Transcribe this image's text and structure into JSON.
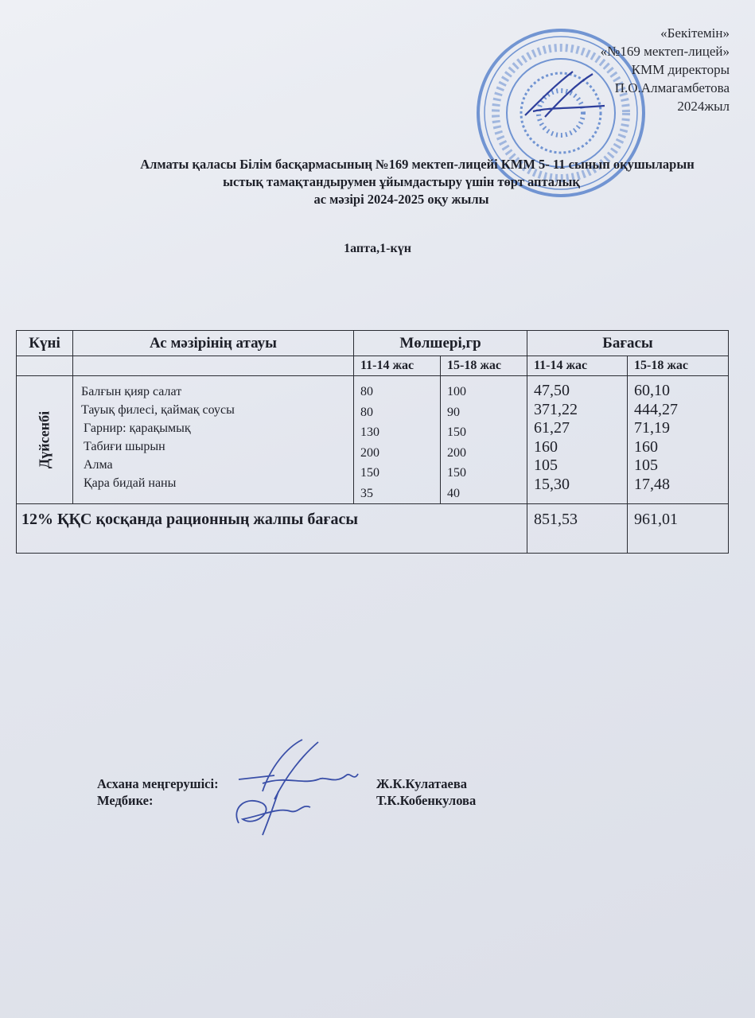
{
  "approval": {
    "lines": [
      "«Бекітемін»",
      "«№169 мектеп-лицей»",
      "КММ директоры",
      "П.О.Алмагамбетова",
      "2024жыл"
    ],
    "stamp_text": "АЛМАТЫ ҚАЛАСЫ ... №169 МЕКТЕП-ЛИЦЕЙІ КОММУНАЛДЫҚ МЕМЛЕКЕТТІК МЕКЕМЕСІ БСН 0705400...",
    "stamp_color": "#3f6fc4"
  },
  "title": {
    "line1": "Алматы қаласы  Білім басқармасының №169 мектеп-лицейі КММ 5- 11 сынып  оқушыларын",
    "line2": "ыстық тамақтандырумен ұйымдастыру үшін  төрт апталық",
    "line3": "ас мәзірі 2024-2025  оқу жылы",
    "week_day": "1апта,1-күн"
  },
  "table": {
    "headers": {
      "day": "Күні",
      "name": "Ас мәзірінің атауы",
      "amount": "Мөлшері,гр",
      "price": "Бағасы",
      "age1": "11-14 жас",
      "age2": "15-18 жас"
    },
    "day": "Дүйсенбі",
    "items": [
      "Балғын қияр салат",
      "Тауық филесі, қаймақ  соусы",
      "Гарнир: қарақымық",
      "Табиғи  шырын",
      "Алма",
      "Қара бидай наны"
    ],
    "amount_11_14": [
      "80",
      "80",
      "130",
      "200",
      "150",
      "35"
    ],
    "amount_15_18": [
      "100",
      "90",
      "150",
      "200",
      "150",
      "40"
    ],
    "price_11_14": [
      "47,50",
      "371,22",
      "61,27",
      "160",
      "105",
      "15,30"
    ],
    "price_15_18": [
      "60,10",
      "444,27",
      "71,19",
      "160",
      "105",
      "17,48"
    ],
    "total_label": "12% ҚҚС қосқанда рационның жалпы бағасы",
    "total_11_14": "851,53",
    "total_15_18": "961,01"
  },
  "signatures": {
    "role1": "Асхана меңгерушісі:",
    "role2": "Медбике:",
    "name1": "Ж.К.Кулатаева",
    "name2": "Т.К.Кобенкулова",
    "ink_color": "#3a4fa8"
  }
}
